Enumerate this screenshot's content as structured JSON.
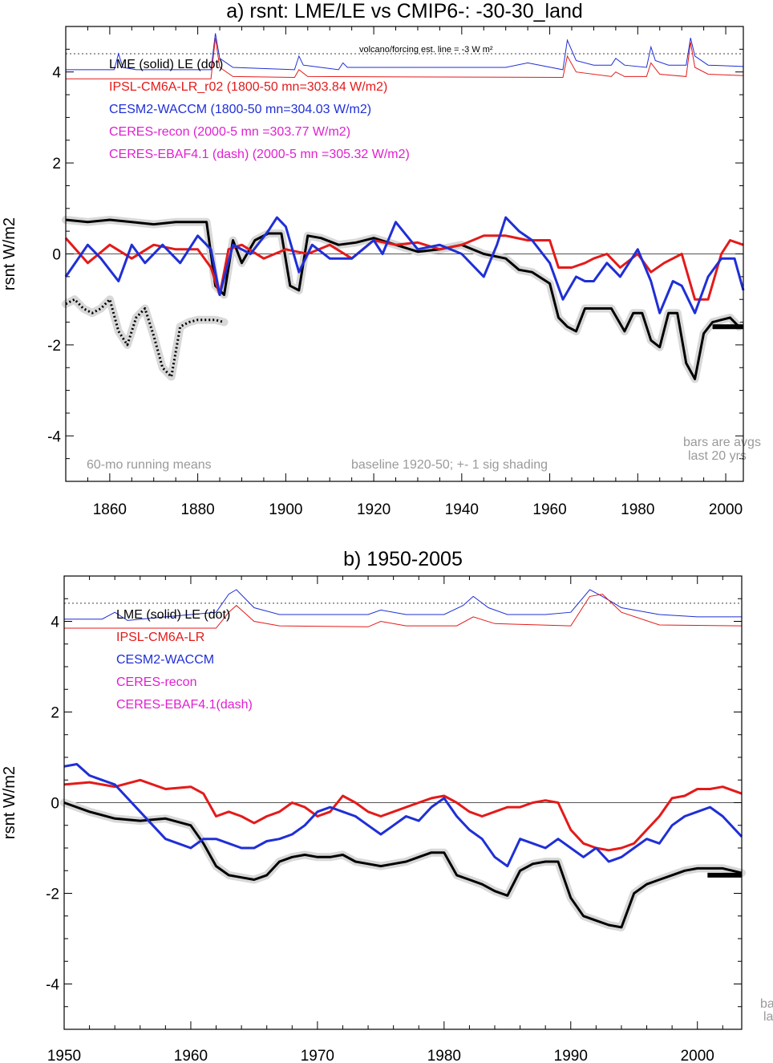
{
  "chart_data": [
    {
      "type": "line",
      "title": "a) rsnt: LME/LE vs CMIP6-: -30-30_land",
      "ylabel": "rsnt W/m2",
      "xlabel": "",
      "xlim": [
        1850,
        2004
      ],
      "ylim": [
        -5,
        5
      ],
      "xticks": [
        1860,
        1880,
        1900,
        1920,
        1940,
        1960,
        1980,
        2000
      ],
      "yticks": [
        -4,
        -2,
        0,
        2,
        4
      ],
      "legend": {
        "header": "LME (solid)   LE (dot)",
        "entries": [
          {
            "text": "IPSL-CM6A-LR_r02 (1800-50 mn=303.84 W/m2)",
            "color": "#e41a1a"
          },
          {
            "text": "CESM2-WACCM (1800-50 mn=304.03 W/m2)",
            "color": "#1f2fd6"
          },
          {
            "text": "CERES-recon (2000-5 mn =303.77 W/m2)",
            "color": "#e020d0"
          },
          {
            "text": "CERES-EBAF4.1 (dash) (2000-5 mn =305.32 W/m2)",
            "color": "#e020d0"
          }
        ]
      },
      "forcing_label": "volcano/forcing est.      line = -3 W m²",
      "annotations": {
        "left": "60-mo running means",
        "center": "baseline 1920-50; +- 1 sig shading",
        "bars_line1": "bars are avgs",
        "bars_line2": "last 20 yrs"
      },
      "series": [
        {
          "name": "LME",
          "color": "#000000",
          "x": [
            1850,
            1855,
            1860,
            1865,
            1870,
            1875,
            1880,
            1882,
            1884,
            1886,
            1888,
            1890,
            1893,
            1896,
            1899,
            1901,
            1903,
            1905,
            1908,
            1912,
            1916,
            1920,
            1925,
            1930,
            1935,
            1940,
            1945,
            1950,
            1953,
            1956,
            1960,
            1962,
            1964,
            1966,
            1968,
            1970,
            1974,
            1977,
            1979,
            1981,
            1983,
            1985,
            1987,
            1989,
            1991,
            1993,
            1995,
            1997,
            1999,
            2001,
            2003
          ],
          "y": [
            0.75,
            0.7,
            0.75,
            0.7,
            0.65,
            0.7,
            0.7,
            0.7,
            -0.7,
            -0.9,
            0.3,
            -0.2,
            0.3,
            0.45,
            0.45,
            -0.7,
            -0.8,
            0.4,
            0.35,
            0.2,
            0.25,
            0.35,
            0.2,
            0.05,
            0.1,
            0.2,
            0.0,
            -0.1,
            -0.35,
            -0.4,
            -0.65,
            -1.4,
            -1.6,
            -1.7,
            -1.2,
            -1.2,
            -1.2,
            -1.7,
            -1.3,
            -1.3,
            -1.9,
            -2.05,
            -1.3,
            -1.3,
            -2.4,
            -2.75,
            -1.75,
            -1.5,
            -1.45,
            -1.4,
            -1.6
          ]
        },
        {
          "name": "LE",
          "color": "#000000",
          "x": [
            1850,
            1852,
            1854,
            1856,
            1858,
            1860,
            1862,
            1864,
            1866,
            1868,
            1870,
            1872,
            1874,
            1876,
            1878,
            1880,
            1882,
            1884,
            1886
          ],
          "y": [
            -1.1,
            -1.0,
            -1.2,
            -1.3,
            -1.2,
            -1.0,
            -1.7,
            -2.0,
            -1.4,
            -1.2,
            -1.8,
            -2.5,
            -2.7,
            -1.6,
            -1.5,
            -1.45,
            -1.45,
            -1.45,
            -1.5
          ]
        },
        {
          "name": "IPSL-CM6A-LR_r02",
          "color": "#e41a1a",
          "x": [
            1850,
            1855,
            1860,
            1865,
            1870,
            1875,
            1880,
            1883,
            1885,
            1887,
            1890,
            1895,
            1900,
            1905,
            1910,
            1915,
            1920,
            1925,
            1930,
            1935,
            1940,
            1945,
            1950,
            1955,
            1960,
            1962,
            1965,
            1968,
            1970,
            1973,
            1976,
            1980,
            1983,
            1986,
            1990,
            1993,
            1996,
            1999,
            2001,
            2004
          ],
          "y": [
            0.35,
            -0.2,
            0.2,
            -0.1,
            0.2,
            0.1,
            0.1,
            -0.3,
            -0.9,
            0.1,
            0.2,
            -0.1,
            0.1,
            0.0,
            0.2,
            -0.1,
            0.3,
            0.2,
            0.25,
            0.1,
            0.2,
            0.4,
            0.4,
            0.3,
            0.3,
            -0.3,
            -0.3,
            -0.2,
            -0.1,
            0.0,
            -0.3,
            0.0,
            -0.4,
            -0.2,
            0.0,
            -1.0,
            -1.0,
            0.0,
            0.3,
            0.2
          ]
        },
        {
          "name": "CESM2-WACCM",
          "color": "#1f2fd6",
          "x": [
            1850,
            1855,
            1858,
            1862,
            1865,
            1868,
            1872,
            1876,
            1880,
            1883,
            1885,
            1888,
            1892,
            1896,
            1898,
            1900,
            1903,
            1906,
            1910,
            1915,
            1920,
            1922,
            1925,
            1930,
            1935,
            1940,
            1945,
            1948,
            1950,
            1953,
            1956,
            1960,
            1963,
            1966,
            1968,
            1970,
            1973,
            1976,
            1980,
            1983,
            1985,
            1988,
            1990,
            1993,
            1996,
            1999,
            2002,
            2004
          ],
          "y": [
            -0.5,
            0.2,
            -0.1,
            -0.6,
            0.2,
            -0.2,
            0.2,
            -0.2,
            0.4,
            0.1,
            -0.9,
            0.2,
            0.0,
            0.5,
            0.8,
            0.6,
            -0.4,
            0.2,
            -0.1,
            -0.1,
            0.3,
            0.0,
            0.7,
            0.1,
            0.2,
            0.0,
            -0.5,
            0.2,
            0.8,
            0.5,
            0.3,
            -0.2,
            -1.0,
            -0.5,
            -0.6,
            -0.6,
            -0.2,
            -0.5,
            0.1,
            -0.6,
            -1.3,
            -0.6,
            -0.7,
            -1.3,
            -0.5,
            -0.1,
            -0.1,
            -0.8
          ]
        }
      ],
      "forcing_lines": [
        {
          "name": "CESM2-WACCM forcing",
          "color": "#1f2fd6",
          "x": [
            1850,
            1861,
            1862,
            1863,
            1866,
            1883,
            1884,
            1885,
            1888,
            1902,
            1903,
            1904,
            1908,
            1912,
            1913,
            1914,
            1920,
            1930,
            1950,
            1955,
            1963,
            1964,
            1966,
            1970,
            1974,
            1975,
            1977,
            1982,
            1983,
            1984,
            1987,
            1991,
            1992,
            1993,
            1996,
            2004
          ],
          "y": [
            4.05,
            4.05,
            4.4,
            4.1,
            4.05,
            4.05,
            4.85,
            4.3,
            4.1,
            4.05,
            4.35,
            4.15,
            4.1,
            4.05,
            4.2,
            4.1,
            4.1,
            4.1,
            4.1,
            4.2,
            4.05,
            4.7,
            4.25,
            4.15,
            4.15,
            4.3,
            4.15,
            4.1,
            4.55,
            4.25,
            4.15,
            4.15,
            4.75,
            4.35,
            4.15,
            4.12
          ]
        },
        {
          "name": "IPSL-CM6A-LR forcing",
          "color": "#e41a1a",
          "x": [
            1850,
            1883,
            1884,
            1885,
            1888,
            1902,
            1903,
            1905,
            1963,
            1964,
            1966,
            1974,
            1975,
            1977,
            1982,
            1983,
            1985,
            1991,
            1992,
            1993,
            1996,
            2004
          ],
          "y": [
            3.85,
            3.85,
            4.75,
            4.1,
            3.9,
            3.88,
            4.05,
            3.9,
            3.88,
            4.35,
            4.0,
            3.9,
            4.0,
            3.9,
            3.9,
            4.2,
            3.95,
            3.9,
            4.65,
            4.1,
            3.95,
            3.92
          ]
        }
      ],
      "bars": [
        {
          "color": "#000000",
          "x": [
            1997,
            2004
          ],
          "y": -1.6
        }
      ],
      "forcing_dotted_y": 4.4
    },
    {
      "type": "line",
      "title": "b) 1950-2005",
      "ylabel": "rsnt W/m2",
      "xlabel": "",
      "xlim": [
        1950,
        2003.5
      ],
      "ylim": [
        -5,
        5
      ],
      "xticks": [
        1950,
        1960,
        1970,
        1980,
        1990,
        2000
      ],
      "yticks": [
        -4,
        -2,
        0,
        2,
        4
      ],
      "legend": {
        "header": "LME (solid)    LE (dot)",
        "entries": [
          {
            "text": "IPSL-CM6A-LR",
            "color": "#e41a1a"
          },
          {
            "text": "CESM2-WACCM",
            "color": "#1f2fd6"
          },
          {
            "text": "CERES-recon",
            "color": "#e020d0"
          },
          {
            "text": "CERES-EBAF4.1(dash)",
            "color": "#e020d0"
          }
        ]
      },
      "annotations": {
        "bars_line1": "ba",
        "bars_line2": "la"
      },
      "series": [
        {
          "name": "LME",
          "color": "#000000",
          "x": [
            1950,
            1952,
            1954,
            1956,
            1958,
            1960,
            1961,
            1962,
            1963,
            1964,
            1965,
            1966,
            1967,
            1968,
            1969,
            1970,
            1971,
            1972,
            1973,
            1974,
            1975,
            1976,
            1977,
            1978,
            1979,
            1980,
            1981,
            1982,
            1983,
            1984,
            1985,
            1986,
            1987,
            1988,
            1989,
            1990,
            1991,
            1992,
            1993,
            1994,
            1995,
            1996,
            1997,
            1998,
            1999,
            2000,
            2001,
            2002,
            2003.5
          ],
          "y": [
            0.0,
            -0.2,
            -0.35,
            -0.4,
            -0.35,
            -0.5,
            -0.9,
            -1.4,
            -1.6,
            -1.65,
            -1.7,
            -1.6,
            -1.3,
            -1.2,
            -1.15,
            -1.2,
            -1.2,
            -1.15,
            -1.3,
            -1.35,
            -1.4,
            -1.35,
            -1.3,
            -1.2,
            -1.1,
            -1.1,
            -1.6,
            -1.7,
            -1.8,
            -1.95,
            -2.05,
            -1.5,
            -1.35,
            -1.3,
            -1.3,
            -2.1,
            -2.5,
            -2.6,
            -2.7,
            -2.75,
            -2.0,
            -1.8,
            -1.7,
            -1.6,
            -1.5,
            -1.45,
            -1.45,
            -1.45,
            -1.55
          ]
        },
        {
          "name": "IPSL-CM6A-LR",
          "color": "#e41a1a",
          "x": [
            1950,
            1952,
            1954,
            1956,
            1958,
            1960,
            1961,
            1962,
            1963,
            1964,
            1965,
            1966,
            1967,
            1968,
            1969,
            1970,
            1971,
            1972,
            1973,
            1974,
            1975,
            1976,
            1977,
            1978,
            1979,
            1980,
            1981,
            1982,
            1983,
            1984,
            1985,
            1986,
            1987,
            1988,
            1989,
            1990,
            1991,
            1992,
            1993,
            1994,
            1995,
            1996,
            1997,
            1998,
            1999,
            2000,
            2001,
            2002,
            2003.5
          ],
          "y": [
            0.4,
            0.45,
            0.35,
            0.5,
            0.3,
            0.35,
            0.2,
            -0.3,
            -0.2,
            -0.3,
            -0.45,
            -0.3,
            -0.2,
            0.0,
            -0.1,
            -0.3,
            -0.2,
            0.15,
            0.0,
            -0.2,
            -0.3,
            -0.2,
            -0.1,
            0.0,
            0.1,
            0.15,
            0.0,
            -0.2,
            -0.3,
            -0.2,
            -0.1,
            -0.1,
            0.0,
            0.05,
            0.0,
            -0.6,
            -0.9,
            -1.0,
            -1.05,
            -1.0,
            -0.9,
            -0.6,
            -0.3,
            0.1,
            0.15,
            0.3,
            0.3,
            0.35,
            0.2
          ]
        },
        {
          "name": "CESM2-WACCM",
          "color": "#1f2fd6",
          "x": [
            1950,
            1951,
            1952,
            1953,
            1954,
            1955,
            1956,
            1957,
            1958,
            1959,
            1960,
            1961,
            1962,
            1963,
            1964,
            1965,
            1966,
            1967,
            1968,
            1969,
            1970,
            1971,
            1972,
            1973,
            1974,
            1975,
            1976,
            1977,
            1978,
            1979,
            1980,
            1981,
            1982,
            1983,
            1984,
            1985,
            1986,
            1987,
            1988,
            1989,
            1990,
            1991,
            1992,
            1993,
            1994,
            1995,
            1996,
            1997,
            1998,
            1999,
            2000,
            2001,
            2002,
            2003.5
          ],
          "y": [
            0.8,
            0.85,
            0.6,
            0.5,
            0.4,
            0.1,
            -0.2,
            -0.5,
            -0.8,
            -0.9,
            -1.0,
            -0.8,
            -0.8,
            -0.9,
            -1.0,
            -1.0,
            -0.85,
            -0.8,
            -0.7,
            -0.5,
            -0.2,
            -0.1,
            -0.2,
            -0.3,
            -0.5,
            -0.7,
            -0.5,
            -0.3,
            -0.4,
            -0.1,
            0.1,
            -0.3,
            -0.6,
            -0.8,
            -1.2,
            -1.4,
            -0.8,
            -0.9,
            -1.0,
            -0.8,
            -1.0,
            -1.2,
            -1.0,
            -1.3,
            -1.2,
            -1.0,
            -0.8,
            -0.9,
            -0.5,
            -0.3,
            -0.2,
            -0.1,
            -0.3,
            -0.75
          ]
        }
      ],
      "forcing_lines": [
        {
          "name": "CESM2-WACCM forcing",
          "color": "#1f2fd6",
          "x": [
            1950,
            1953,
            1954,
            1955,
            1958,
            1962,
            1963,
            1963.6,
            1965,
            1967,
            1970,
            1974,
            1975,
            1977,
            1980,
            1981.5,
            1982.3,
            1983.5,
            1985,
            1988,
            1990,
            1991.5,
            1992.5,
            1994,
            1997,
            2000,
            2003.5
          ],
          "y": [
            4.05,
            4.05,
            4.2,
            4.02,
            4.1,
            4.2,
            4.6,
            4.7,
            4.3,
            4.15,
            4.15,
            4.15,
            4.25,
            4.15,
            4.15,
            4.35,
            4.55,
            4.3,
            4.15,
            4.15,
            4.2,
            4.7,
            4.55,
            4.3,
            4.15,
            4.1,
            4.1
          ]
        },
        {
          "name": "IPSL-CM6A-LR forcing",
          "color": "#e41a1a",
          "x": [
            1950,
            1962,
            1963,
            1963.6,
            1965,
            1967,
            1974,
            1975,
            1977,
            1981,
            1982.3,
            1984,
            1990,
            1991.5,
            1992.5,
            1994,
            1997,
            2003.5
          ],
          "y": [
            3.85,
            3.85,
            4.2,
            4.35,
            4.0,
            3.9,
            3.88,
            4.0,
            3.9,
            3.9,
            4.1,
            3.95,
            3.9,
            4.55,
            4.6,
            4.2,
            3.92,
            3.9
          ]
        }
      ],
      "bars": [
        {
          "color": "#000000",
          "x": [
            2000.8,
            2003.5
          ],
          "y": -1.6
        }
      ],
      "forcing_dotted_y": 4.4
    }
  ]
}
